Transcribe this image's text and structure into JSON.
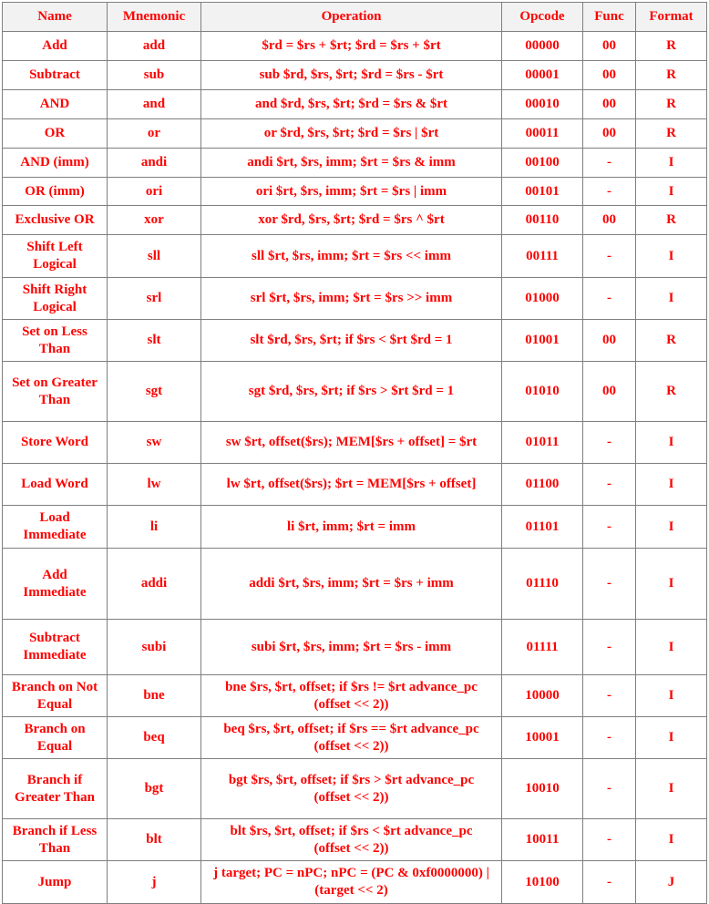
{
  "table": {
    "headers": [
      "Name",
      "Mnemonic",
      "Operation",
      "Opcode",
      "Func",
      "Format"
    ],
    "rows": [
      {
        "name": "Add",
        "mnemonic": "add",
        "operation": "$rd = $rs + $rt; $rd = $rs + $rt",
        "opcode": "00000",
        "func": "00",
        "format": "R"
      },
      {
        "name": "Subtract",
        "mnemonic": "sub",
        "operation": "sub $rd, $rs, $rt;  $rd = $rs - $rt",
        "opcode": "00001",
        "func": "00",
        "format": "R"
      },
      {
        "name": "AND",
        "mnemonic": "and",
        "operation": "and $rd, $rs, $rt; $rd = $rs & $rt",
        "opcode": "00010",
        "func": "00",
        "format": "R"
      },
      {
        "name": "OR",
        "mnemonic": "or",
        "operation": "or $rd, $rs, $rt; $rd = $rs | $rt",
        "opcode": "00011",
        "func": "00",
        "format": "R"
      },
      {
        "name": "AND (imm)",
        "mnemonic": "andi",
        "operation": "andi $rt, $rs, imm; $rt = $rs & imm",
        "opcode": "00100",
        "func": "-",
        "format": "I"
      },
      {
        "name": "OR (imm)",
        "mnemonic": "ori",
        "operation": "ori $rt, $rs, imm; $rt = $rs | imm",
        "opcode": "00101",
        "func": "-",
        "format": "I"
      },
      {
        "name": "Exclusive OR",
        "mnemonic": "xor",
        "operation": "xor $rd, $rs, $rt; $rd = $rs ^ $rt",
        "opcode": "00110",
        "func": "00",
        "format": "R"
      },
      {
        "name": "Shift Left Logical",
        "mnemonic": "sll",
        "operation": "sll $rt, $rs, imm; $rt = $rs << imm",
        "opcode": "00111",
        "func": "-",
        "format": "I"
      },
      {
        "name": "Shift Right Logical",
        "mnemonic": "srl",
        "operation": "srl $rt, $rs, imm; $rt = $rs >> imm",
        "opcode": "01000",
        "func": "-",
        "format": "I"
      },
      {
        "name": "Set on Less Than",
        "mnemonic": "slt",
        "operation": "slt $rd, $rs, $rt; if $rs < $rt $rd = 1",
        "opcode": "01001",
        "func": "00",
        "format": "R"
      },
      {
        "name": "Set on Greater Than",
        "mnemonic": "sgt",
        "operation": "sgt $rd, $rs, $rt; if $rs > $rt $rd = 1",
        "opcode": "01010",
        "func": "00",
        "format": "R"
      },
      {
        "name": "Store Word",
        "mnemonic": "sw",
        "operation": "sw $rt, offset($rs); MEM[$rs + offset] = $rt",
        "opcode": "01011",
        "func": "-",
        "format": "I"
      },
      {
        "name": "Load Word",
        "mnemonic": "lw",
        "operation": "lw $rt, offset($rs); $rt = MEM[$rs + offset]",
        "opcode": "01100",
        "func": "-",
        "format": "I"
      },
      {
        "name": "Load Immediate",
        "mnemonic": "li",
        "operation": "li $rt, imm; $rt = imm",
        "opcode": "01101",
        "func": "-",
        "format": "I"
      },
      {
        "name": "Add Immediate",
        "mnemonic": "addi",
        "operation": "addi $rt, $rs, imm;  $rt = $rs + imm",
        "opcode": "01110",
        "func": "-",
        "format": "I"
      },
      {
        "name": "Subtract Immediate",
        "mnemonic": "subi",
        "operation": "subi $rt, $rs, imm;  $rt = $rs - imm",
        "opcode": "01111",
        "func": "-",
        "format": "I"
      },
      {
        "name": "Branch on Not Equal",
        "mnemonic": "bne",
        "operation": "bne $rs, $rt, offset; if $rs != $rt advance_pc (offset << 2))",
        "opcode": "10000",
        "func": "-",
        "format": "I"
      },
      {
        "name": "Branch on Equal",
        "mnemonic": "beq",
        "operation": "beq $rs, $rt, offset; if $rs == $rt advance_pc (offset << 2))",
        "opcode": "10001",
        "func": "-",
        "format": "I"
      },
      {
        "name": "Branch if Greater Than",
        "mnemonic": "bgt",
        "operation": "bgt $rs, $rt, offset; if $rs > $rt advance_pc (offset << 2))",
        "opcode": "10010",
        "func": "-",
        "format": "I"
      },
      {
        "name": "Branch if Less Than",
        "mnemonic": "blt",
        "operation": "blt $rs, $rt, offset; if $rs < $rt advance_pc (offset << 2))",
        "opcode": "10011",
        "func": "-",
        "format": "I"
      },
      {
        "name": "Jump",
        "mnemonic": "j",
        "operation": "j target; PC = nPC; nPC = (PC & 0xf0000000) | (target << 2)",
        "opcode": "10100",
        "func": "-",
        "format": "J"
      }
    ]
  }
}
